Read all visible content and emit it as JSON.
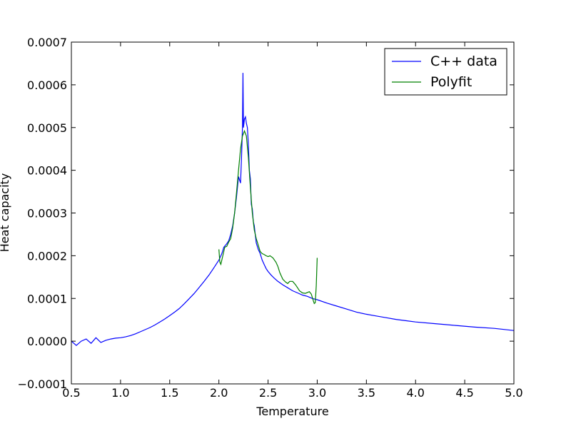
{
  "chart_data": {
    "type": "line",
    "title": "",
    "xlabel": "Temperature",
    "ylabel": "Heat capacity",
    "xlim": [
      0.5,
      5.0
    ],
    "ylim": [
      -0.0001,
      0.0007
    ],
    "xticks": [
      "0.5",
      "1.0",
      "1.5",
      "2.0",
      "2.5",
      "3.0",
      "3.5",
      "4.0",
      "4.5",
      "5.0"
    ],
    "yticks": [
      "−0.0001",
      "0.0000",
      "0.0001",
      "0.0002",
      "0.0003",
      "0.0004",
      "0.0005",
      "0.0006",
      "0.0007"
    ],
    "grid": false,
    "legend_position": "top-right",
    "series": [
      {
        "name": "C++ data",
        "color": "#0000ff",
        "x": [
          0.5,
          0.55,
          0.6,
          0.65,
          0.7,
          0.75,
          0.8,
          0.85,
          0.9,
          0.95,
          1.0,
          1.05,
          1.1,
          1.15,
          1.2,
          1.25,
          1.3,
          1.35,
          1.4,
          1.45,
          1.5,
          1.55,
          1.6,
          1.65,
          1.7,
          1.75,
          1.8,
          1.85,
          1.9,
          1.95,
          2.0,
          2.03,
          2.05,
          2.08,
          2.1,
          2.12,
          2.14,
          2.16,
          2.18,
          2.2,
          2.22,
          2.23,
          2.24,
          2.245,
          2.25,
          2.26,
          2.27,
          2.28,
          2.29,
          2.3,
          2.31,
          2.32,
          2.33,
          2.34,
          2.35,
          2.36,
          2.37,
          2.38,
          2.4,
          2.42,
          2.44,
          2.46,
          2.48,
          2.5,
          2.53,
          2.56,
          2.6,
          2.65,
          2.7,
          2.75,
          2.8,
          2.85,
          2.9,
          2.95,
          3.0,
          3.1,
          3.2,
          3.3,
          3.4,
          3.5,
          3.6,
          3.7,
          3.8,
          3.9,
          4.0,
          4.2,
          4.4,
          4.6,
          4.8,
          5.0
        ],
        "y": [
          0.0,
          -1e-05,
          0.0,
          5e-06,
          -5e-06,
          8e-06,
          -3e-06,
          2e-06,
          5e-06,
          7e-06,
          8e-06,
          1e-05,
          1.3e-05,
          1.7e-05,
          2.2e-05,
          2.7e-05,
          3.2e-05,
          3.8e-05,
          4.5e-05,
          5.2e-05,
          6e-05,
          6.8e-05,
          7.7e-05,
          8.8e-05,
          0.0001,
          0.000112,
          0.000126,
          0.00014,
          0.000155,
          0.000172,
          0.00019,
          0.000205,
          0.00022,
          0.000228,
          0.000235,
          0.00025,
          0.00027,
          0.0003,
          0.00034,
          0.000385,
          0.00037,
          0.00043,
          0.0005,
          0.000628,
          0.0005,
          0.00052,
          0.000525,
          0.00051,
          0.0005,
          0.00046,
          0.0004,
          0.00038,
          0.00032,
          0.00031,
          0.00028,
          0.00027,
          0.00025,
          0.00023,
          0.000215,
          0.000205,
          0.00019,
          0.00018,
          0.00017,
          0.000163,
          0.000155,
          0.000148,
          0.00014,
          0.000132,
          0.000125,
          0.000118,
          0.000113,
          0.000108,
          0.000105,
          0.0001,
          9.7e-05,
          8.9e-05,
          8.2e-05,
          7.5e-05,
          6.8e-05,
          6.3e-05,
          5.9e-05,
          5.5e-05,
          5.1e-05,
          4.8e-05,
          4.5e-05,
          4.1e-05,
          3.7e-05,
          3.3e-05,
          3e-05,
          2.5e-05
        ]
      },
      {
        "name": "Polyfit",
        "color": "#008000",
        "x": [
          2.0,
          2.01,
          2.02,
          2.04,
          2.06,
          2.08,
          2.1,
          2.12,
          2.14,
          2.16,
          2.18,
          2.2,
          2.22,
          2.24,
          2.26,
          2.28,
          2.3,
          2.32,
          2.34,
          2.36,
          2.38,
          2.4,
          2.42,
          2.44,
          2.46,
          2.48,
          2.5,
          2.52,
          2.55,
          2.58,
          2.6,
          2.62,
          2.65,
          2.68,
          2.7,
          2.72,
          2.75,
          2.78,
          2.8,
          2.82,
          2.85,
          2.88,
          2.9,
          2.92,
          2.94,
          2.96,
          2.97,
          2.98,
          2.99,
          3.0
        ],
        "y": [
          0.000215,
          0.000185,
          0.00018,
          0.0002,
          0.00022,
          0.000222,
          0.000232,
          0.00024,
          0.000265,
          0.0003,
          0.00035,
          0.0004,
          0.00045,
          0.00048,
          0.000492,
          0.00048,
          0.00043,
          0.00036,
          0.0003,
          0.00026,
          0.00024,
          0.000225,
          0.00021,
          0.000205,
          0.000203,
          0.0002,
          0.000198,
          0.0002,
          0.000195,
          0.000185,
          0.000175,
          0.00016,
          0.000145,
          0.000138,
          0.000135,
          0.00014,
          0.00014,
          0.000132,
          0.000125,
          0.000118,
          0.000113,
          0.000112,
          0.000114,
          0.000116,
          0.00011,
          9.5e-05,
          8.8e-05,
          9e-05,
          0.00013,
          0.000195
        ]
      }
    ]
  }
}
